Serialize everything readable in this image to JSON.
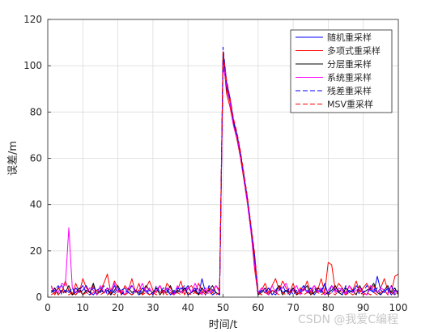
{
  "chart_data": {
    "type": "line",
    "title": "",
    "xlabel": "时间/t",
    "ylabel": "误差/m",
    "xlim": [
      0,
      100
    ],
    "ylim": [
      0,
      120
    ],
    "xticks": [
      0,
      10,
      20,
      30,
      40,
      50,
      60,
      70,
      80,
      90,
      100
    ],
    "yticks": [
      0,
      20,
      40,
      60,
      80,
      100,
      120
    ],
    "grid": true,
    "legend_position": "top-right",
    "series": [
      {
        "name": "随机重采样",
        "color": "#0000ff",
        "dash": "solid",
        "x": [
          1,
          2,
          3,
          4,
          5,
          6,
          7,
          8,
          9,
          10,
          11,
          12,
          13,
          14,
          15,
          16,
          17,
          18,
          19,
          20,
          21,
          22,
          23,
          24,
          25,
          26,
          27,
          28,
          29,
          30,
          31,
          32,
          33,
          34,
          35,
          36,
          37,
          38,
          39,
          40,
          41,
          42,
          43,
          44,
          45,
          46,
          47,
          48,
          49,
          50,
          51,
          52,
          53,
          54,
          55,
          56,
          57,
          58,
          59,
          60,
          61,
          62,
          63,
          64,
          65,
          66,
          67,
          68,
          69,
          70,
          71,
          72,
          73,
          74,
          75,
          76,
          77,
          78,
          79,
          80,
          81,
          82,
          83,
          84,
          85,
          86,
          87,
          88,
          89,
          90,
          91,
          92,
          93,
          94,
          95,
          96,
          97,
          98,
          99,
          100
        ],
        "y": [
          3,
          2,
          4,
          5,
          2,
          3,
          1,
          4,
          2,
          3,
          5,
          2,
          1,
          3,
          4,
          2,
          3,
          1,
          5,
          2,
          3,
          4,
          2,
          1,
          3,
          2,
          4,
          3,
          1,
          2,
          3,
          5,
          2,
          4,
          1,
          3,
          2,
          4,
          3,
          5,
          2,
          4,
          1,
          8,
          2,
          3,
          1,
          2,
          1,
          100,
          92,
          85,
          76,
          70,
          62,
          52,
          42,
          30,
          18,
          2,
          3,
          2,
          4,
          1,
          3,
          5,
          2,
          3,
          1,
          4,
          2,
          3,
          5,
          2,
          4,
          1,
          3,
          2,
          6,
          1,
          5,
          3,
          2,
          4,
          1,
          3,
          2,
          5,
          3,
          2,
          1,
          4,
          2,
          9,
          3,
          2,
          4,
          1,
          3,
          2
        ]
      },
      {
        "name": "多项式重采样",
        "color": "#ff0000",
        "dash": "solid",
        "x": [
          1,
          2,
          3,
          4,
          5,
          6,
          7,
          8,
          9,
          10,
          11,
          12,
          13,
          14,
          15,
          16,
          17,
          18,
          19,
          20,
          21,
          22,
          23,
          24,
          25,
          26,
          27,
          28,
          29,
          30,
          31,
          32,
          33,
          34,
          35,
          36,
          37,
          38,
          39,
          40,
          41,
          42,
          43,
          44,
          45,
          46,
          47,
          48,
          49,
          50,
          51,
          52,
          53,
          54,
          55,
          56,
          57,
          58,
          59,
          60,
          61,
          62,
          63,
          64,
          65,
          66,
          67,
          68,
          69,
          70,
          71,
          72,
          73,
          74,
          75,
          76,
          77,
          78,
          79,
          80,
          81,
          82,
          83,
          84,
          85,
          86,
          87,
          88,
          89,
          90,
          91,
          92,
          93,
          94,
          95,
          96,
          97,
          98,
          99,
          100
        ],
        "y": [
          5,
          1,
          4,
          2,
          7,
          3,
          1,
          6,
          2,
          8,
          4,
          2,
          5,
          1,
          3,
          6,
          10,
          2,
          7,
          4,
          1,
          5,
          3,
          8,
          2,
          6,
          1,
          4,
          7,
          3,
          2,
          5,
          1,
          6,
          4,
          2,
          3,
          7,
          1,
          4,
          5,
          2,
          6,
          3,
          1,
          4,
          2,
          5,
          3,
          105,
          88,
          82,
          74,
          68,
          60,
          50,
          40,
          28,
          12,
          1,
          3,
          6,
          2,
          5,
          8,
          3,
          7,
          4,
          2,
          6,
          1,
          4,
          3,
          7,
          2,
          5,
          3,
          8,
          2,
          15,
          14,
          3,
          6,
          4,
          2,
          5,
          3,
          7,
          2,
          4,
          6,
          3,
          5,
          2,
          4,
          8,
          3,
          2,
          9,
          10
        ]
      },
      {
        "name": "分层重采样",
        "color": "#000000",
        "dash": "solid",
        "x": [
          1,
          2,
          3,
          4,
          5,
          6,
          7,
          8,
          9,
          10,
          11,
          12,
          13,
          14,
          15,
          16,
          17,
          18,
          19,
          20,
          21,
          22,
          23,
          24,
          25,
          26,
          27,
          28,
          29,
          30,
          31,
          32,
          33,
          34,
          35,
          36,
          37,
          38,
          39,
          40,
          41,
          42,
          43,
          44,
          45,
          46,
          47,
          48,
          49,
          50,
          51,
          52,
          53,
          54,
          55,
          56,
          57,
          58,
          59,
          60,
          61,
          62,
          63,
          64,
          65,
          66,
          67,
          68,
          69,
          70,
          71,
          72,
          73,
          74,
          75,
          76,
          77,
          78,
          79,
          80,
          81,
          82,
          83,
          84,
          85,
          86,
          87,
          88,
          89,
          90,
          91,
          92,
          93,
          94,
          95,
          96,
          97,
          98,
          99,
          100
        ],
        "y": [
          2,
          4,
          1,
          3,
          2,
          5,
          1,
          2,
          4,
          1,
          3,
          2,
          6,
          1,
          3,
          2,
          4,
          1,
          3,
          5,
          2,
          1,
          4,
          2,
          3,
          1,
          2,
          5,
          3,
          2,
          4,
          1,
          3,
          2,
          5,
          1,
          3,
          2,
          4,
          1,
          2,
          3,
          1,
          4,
          2,
          3,
          5,
          2,
          1,
          104,
          90,
          84,
          75,
          69,
          61,
          51,
          41,
          29,
          16,
          1,
          2,
          4,
          1,
          3,
          2,
          5,
          1,
          3,
          2,
          4,
          1,
          2,
          3,
          5,
          1,
          2,
          4,
          3,
          1,
          2,
          3,
          5,
          2,
          1,
          4,
          2,
          3,
          1,
          5,
          2,
          3,
          4,
          6,
          2,
          1,
          3,
          5,
          2,
          4,
          1
        ]
      },
      {
        "name": "系统重采样",
        "color": "#ff00ff",
        "dash": "solid",
        "x": [
          1,
          2,
          3,
          4,
          5,
          6,
          7,
          8,
          9,
          10,
          11,
          12,
          13,
          14,
          15,
          16,
          17,
          18,
          19,
          20,
          21,
          22,
          23,
          24,
          25,
          26,
          27,
          28,
          29,
          30,
          31,
          32,
          33,
          34,
          35,
          36,
          37,
          38,
          39,
          40,
          41,
          42,
          43,
          44,
          45,
          46,
          47,
          48,
          49,
          50,
          51,
          52,
          53,
          54,
          55,
          56,
          57,
          58,
          59,
          60,
          61,
          62,
          63,
          64,
          65,
          66,
          67,
          68,
          69,
          70,
          71,
          72,
          73,
          74,
          75,
          76,
          77,
          78,
          79,
          80,
          81,
          82,
          83,
          84,
          85,
          86,
          87,
          88,
          89,
          90,
          91,
          92,
          93,
          94,
          95,
          96,
          97,
          98,
          99,
          100
        ],
        "y": [
          4,
          3,
          2,
          6,
          5,
          30,
          4,
          2,
          3,
          5,
          2,
          4,
          3,
          1,
          5,
          2,
          4,
          3,
          6,
          2,
          3,
          1,
          4,
          5,
          2,
          3,
          6,
          2,
          4,
          1,
          3,
          5,
          2,
          4,
          3,
          1,
          5,
          2,
          3,
          4,
          2,
          6,
          3,
          1,
          4,
          2,
          3,
          5,
          2,
          102,
          91,
          84,
          74,
          69,
          61,
          51,
          40,
          28,
          14,
          2,
          4,
          3,
          1,
          5,
          2,
          3,
          4,
          6,
          2,
          3,
          5,
          1,
          4,
          2,
          3,
          5,
          2,
          4,
          1,
          3,
          5,
          2,
          4,
          3,
          1,
          5,
          2,
          3,
          4,
          2,
          1,
          5,
          3,
          2,
          4,
          3,
          1,
          5,
          2,
          3
        ]
      },
      {
        "name": "残差重采样",
        "color": "#0000ff",
        "dash": "dashed",
        "x": [
          1,
          2,
          3,
          4,
          5,
          6,
          7,
          8,
          9,
          10,
          11,
          12,
          13,
          14,
          15,
          16,
          17,
          18,
          19,
          20,
          21,
          22,
          23,
          24,
          25,
          26,
          27,
          28,
          29,
          30,
          31,
          32,
          33,
          34,
          35,
          36,
          37,
          38,
          39,
          40,
          41,
          42,
          43,
          44,
          45,
          46,
          47,
          48,
          49,
          50,
          51,
          52,
          53,
          54,
          55,
          56,
          57,
          58,
          59,
          60,
          61,
          62,
          63,
          64,
          65,
          66,
          67,
          68,
          69,
          70,
          71,
          72,
          73,
          74,
          75,
          76,
          77,
          78,
          79,
          80,
          81,
          82,
          83,
          84,
          85,
          86,
          87,
          88,
          89,
          90,
          91,
          92,
          93,
          94,
          95,
          96,
          97,
          98,
          99,
          100
        ],
        "y": [
          2,
          3,
          5,
          1,
          3,
          2,
          4,
          1,
          3,
          5,
          2,
          1,
          4,
          3,
          2,
          5,
          1,
          3,
          2,
          4,
          1,
          3,
          2,
          5,
          3,
          1,
          4,
          2,
          3,
          1,
          5,
          2,
          4,
          3,
          1,
          2,
          4,
          3,
          5,
          1,
          2,
          3,
          4,
          2,
          1,
          5,
          3,
          2,
          1,
          108,
          93,
          86,
          76,
          70,
          62,
          52,
          42,
          30,
          17,
          1,
          3,
          2,
          4,
          2,
          1,
          3,
          5,
          2,
          4,
          1,
          3,
          2,
          5,
          3,
          1,
          4,
          2,
          3,
          5,
          1,
          2,
          4,
          3,
          1,
          5,
          2,
          3,
          4,
          1,
          2,
          5,
          3,
          2,
          4,
          1,
          3,
          2,
          5,
          1,
          3
        ]
      },
      {
        "name": "MSV重采样",
        "color": "#ff0000",
        "dash": "dashed",
        "x": [
          1,
          2,
          3,
          4,
          5,
          6,
          7,
          8,
          9,
          10,
          11,
          12,
          13,
          14,
          15,
          16,
          17,
          18,
          19,
          20,
          21,
          22,
          23,
          24,
          25,
          26,
          27,
          28,
          29,
          30,
          31,
          32,
          33,
          34,
          35,
          36,
          37,
          38,
          39,
          40,
          41,
          42,
          43,
          44,
          45,
          46,
          47,
          48,
          49,
          50,
          51,
          52,
          53,
          54,
          55,
          56,
          57,
          58,
          59,
          60,
          61,
          62,
          63,
          64,
          65,
          66,
          67,
          68,
          69,
          70,
          71,
          72,
          73,
          74,
          75,
          76,
          77,
          78,
          79,
          80,
          81,
          82,
          83,
          84,
          85,
          86,
          87,
          88,
          89,
          90,
          91,
          92,
          93,
          94,
          95,
          96,
          97,
          98,
          99,
          100
        ],
        "y": [
          1,
          2,
          1,
          3,
          2,
          1,
          2,
          1,
          3,
          1,
          2,
          1,
          2,
          3,
          1,
          2,
          1,
          2,
          1,
          3,
          2,
          1,
          2,
          1,
          2,
          3,
          1,
          2,
          1,
          2,
          1,
          2,
          3,
          1,
          2,
          1,
          2,
          1,
          3,
          2,
          1,
          2,
          1,
          2,
          3,
          1,
          2,
          1,
          2,
          106,
          94,
          86,
          77,
          71,
          63,
          53,
          43,
          31,
          19,
          2,
          1,
          2,
          1,
          3,
          2,
          1,
          2,
          1,
          2,
          3,
          1,
          2,
          1,
          2,
          1,
          3,
          2,
          1,
          2,
          1,
          2,
          1,
          3,
          2,
          1,
          2,
          1,
          2,
          3,
          1,
          2,
          1,
          2,
          1,
          2,
          3,
          1,
          2,
          1,
          2
        ]
      }
    ]
  },
  "watermark": "CSDN @我爱C编程"
}
